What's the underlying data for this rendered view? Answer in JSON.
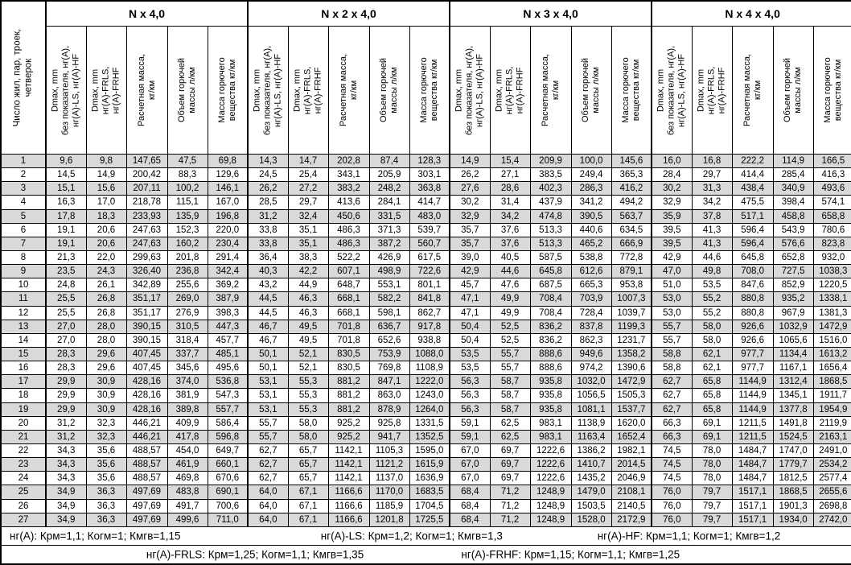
{
  "table": {
    "corner_header": "Число жил, пар, троек,\nчетверок",
    "groups": [
      {
        "title": "N x 4,0"
      },
      {
        "title": "N x 2 x 4,0"
      },
      {
        "title": "N x 3 x 4,0"
      },
      {
        "title": "N x 4 x 4,0"
      }
    ],
    "sub_headers": [
      "Dmax, mm\nбез показателя, нг(А),\nнг(А)-LS, нг(А)-HF",
      "Dmax, mm\nнг(А)-FRLS,\nнг(А)-FRHF",
      "Расчетная масса,\nкг/км",
      "Объем горючей\nмассы л/км",
      "Масса горючего\nвещества кг/км"
    ],
    "stripe_color": "#d9d9d9",
    "rows": [
      {
        "n": "1",
        "cells": [
          "9,6",
          "9,8",
          "147,65",
          "47,5",
          "69,8",
          "14,3",
          "14,7",
          "202,8",
          "87,4",
          "128,3",
          "14,9",
          "15,4",
          "209,9",
          "100,0",
          "145,6",
          "16,0",
          "16,8",
          "222,2",
          "114,9",
          "166,5"
        ]
      },
      {
        "n": "2",
        "cells": [
          "14,5",
          "14,9",
          "200,42",
          "88,3",
          "129,6",
          "24,5",
          "25,4",
          "343,1",
          "205,9",
          "303,1",
          "26,2",
          "27,1",
          "383,5",
          "249,4",
          "365,3",
          "28,4",
          "29,7",
          "414,4",
          "285,4",
          "416,3"
        ]
      },
      {
        "n": "3",
        "cells": [
          "15,1",
          "15,6",
          "207,11",
          "100,2",
          "146,1",
          "26,2",
          "27,2",
          "383,2",
          "248,2",
          "363,8",
          "27,6",
          "28,6",
          "402,3",
          "286,3",
          "416,2",
          "30,2",
          "31,3",
          "438,4",
          "340,9",
          "493,6"
        ]
      },
      {
        "n": "4",
        "cells": [
          "16,3",
          "17,0",
          "218,78",
          "115,1",
          "167,0",
          "28,5",
          "29,7",
          "413,6",
          "284,1",
          "414,7",
          "30,2",
          "31,4",
          "437,9",
          "341,2",
          "494,2",
          "32,9",
          "34,2",
          "475,5",
          "398,4",
          "574,1"
        ]
      },
      {
        "n": "5",
        "cells": [
          "17,8",
          "18,3",
          "233,93",
          "135,9",
          "196,8",
          "31,2",
          "32,4",
          "450,6",
          "331,5",
          "483,0",
          "32,9",
          "34,2",
          "474,8",
          "390,5",
          "563,7",
          "35,9",
          "37,8",
          "517,1",
          "458,8",
          "658,8"
        ]
      },
      {
        "n": "6",
        "cells": [
          "19,1",
          "20,6",
          "247,63",
          "152,3",
          "220,0",
          "33,8",
          "35,1",
          "486,3",
          "371,3",
          "539,7",
          "35,7",
          "37,6",
          "513,3",
          "440,6",
          "634,5",
          "39,5",
          "41,3",
          "596,4",
          "543,9",
          "780,6"
        ]
      },
      {
        "n": "7",
        "cells": [
          "19,1",
          "20,6",
          "247,63",
          "160,2",
          "230,4",
          "33,8",
          "35,1",
          "486,3",
          "387,2",
          "560,7",
          "35,7",
          "37,6",
          "513,3",
          "465,2",
          "666,9",
          "39,5",
          "41,3",
          "596,4",
          "576,6",
          "823,8"
        ]
      },
      {
        "n": "8",
        "cells": [
          "21,3",
          "22,0",
          "299,63",
          "201,8",
          "291,4",
          "36,4",
          "38,3",
          "522,2",
          "426,9",
          "617,5",
          "39,0",
          "40,5",
          "587,5",
          "538,8",
          "772,8",
          "42,9",
          "44,6",
          "645,8",
          "652,8",
          "932,0"
        ]
      },
      {
        "n": "9",
        "cells": [
          "23,5",
          "24,3",
          "326,40",
          "236,8",
          "342,4",
          "40,3",
          "42,2",
          "607,1",
          "498,9",
          "722,6",
          "42,9",
          "44,6",
          "645,8",
          "612,6",
          "879,1",
          "47,0",
          "49,8",
          "708,0",
          "727,5",
          "1038,3"
        ]
      },
      {
        "n": "10",
        "cells": [
          "24,8",
          "26,1",
          "342,89",
          "255,6",
          "369,2",
          "43,2",
          "44,9",
          "648,7",
          "553,1",
          "801,1",
          "45,7",
          "47,6",
          "687,5",
          "665,3",
          "953,8",
          "51,0",
          "53,5",
          "847,6",
          "852,9",
          "1220,5"
        ]
      },
      {
        "n": "11",
        "cells": [
          "25,5",
          "26,8",
          "351,17",
          "269,0",
          "387,9",
          "44,5",
          "46,3",
          "668,1",
          "582,2",
          "841,8",
          "47,1",
          "49,9",
          "708,4",
          "703,9",
          "1007,3",
          "53,0",
          "55,2",
          "880,8",
          "935,2",
          "1338,1"
        ]
      },
      {
        "n": "12",
        "cells": [
          "25,5",
          "26,8",
          "351,17",
          "276,9",
          "398,3",
          "44,5",
          "46,3",
          "668,1",
          "598,1",
          "862,7",
          "47,1",
          "49,9",
          "708,4",
          "728,4",
          "1039,7",
          "53,0",
          "55,2",
          "880,8",
          "967,9",
          "1381,3"
        ]
      },
      {
        "n": "13",
        "cells": [
          "27,0",
          "28,0",
          "390,15",
          "310,5",
          "447,3",
          "46,7",
          "49,5",
          "701,8",
          "636,7",
          "917,8",
          "50,4",
          "52,5",
          "836,2",
          "837,8",
          "1199,3",
          "55,7",
          "58,0",
          "926,6",
          "1032,9",
          "1472,9"
        ]
      },
      {
        "n": "14",
        "cells": [
          "27,0",
          "28,0",
          "390,15",
          "318,4",
          "457,7",
          "46,7",
          "49,5",
          "701,8",
          "652,6",
          "938,8",
          "50,4",
          "52,5",
          "836,2",
          "862,3",
          "1231,7",
          "55,7",
          "58,0",
          "926,6",
          "1065,6",
          "1516,0"
        ]
      },
      {
        "n": "15",
        "cells": [
          "28,3",
          "29,6",
          "407,45",
          "337,7",
          "485,1",
          "50,1",
          "52,1",
          "830,5",
          "753,9",
          "1088,0",
          "53,5",
          "55,7",
          "888,6",
          "949,6",
          "1358,2",
          "58,8",
          "62,1",
          "977,7",
          "1134,4",
          "1613,2"
        ]
      },
      {
        "n": "16",
        "cells": [
          "28,3",
          "29,6",
          "407,45",
          "345,6",
          "495,6",
          "50,1",
          "52,1",
          "830,5",
          "769,8",
          "1108,9",
          "53,5",
          "55,7",
          "888,6",
          "974,2",
          "1390,6",
          "58,8",
          "62,1",
          "977,7",
          "1167,1",
          "1656,4"
        ]
      },
      {
        "n": "17",
        "cells": [
          "29,9",
          "30,9",
          "428,16",
          "374,0",
          "536,8",
          "53,1",
          "55,3",
          "881,2",
          "847,1",
          "1222,0",
          "56,3",
          "58,7",
          "935,8",
          "1032,0",
          "1472,9",
          "62,7",
          "65,8",
          "1144,9",
          "1312,4",
          "1868,5"
        ]
      },
      {
        "n": "18",
        "cells": [
          "29,9",
          "30,9",
          "428,16",
          "381,9",
          "547,3",
          "53,1",
          "55,3",
          "881,2",
          "863,0",
          "1243,0",
          "56,3",
          "58,7",
          "935,8",
          "1056,5",
          "1505,3",
          "62,7",
          "65,8",
          "1144,9",
          "1345,1",
          "1911,7"
        ]
      },
      {
        "n": "19",
        "cells": [
          "29,9",
          "30,9",
          "428,16",
          "389,8",
          "557,7",
          "53,1",
          "55,3",
          "881,2",
          "878,9",
          "1264,0",
          "56,3",
          "58,7",
          "935,8",
          "1081,1",
          "1537,7",
          "62,7",
          "65,8",
          "1144,9",
          "1377,8",
          "1954,9"
        ]
      },
      {
        "n": "20",
        "cells": [
          "31,2",
          "32,3",
          "446,21",
          "409,9",
          "586,4",
          "55,7",
          "58,0",
          "925,2",
          "925,8",
          "1331,5",
          "59,1",
          "62,5",
          "983,1",
          "1138,9",
          "1620,0",
          "66,3",
          "69,1",
          "1211,5",
          "1491,8",
          "2119,9"
        ]
      },
      {
        "n": "21",
        "cells": [
          "31,2",
          "32,3",
          "446,21",
          "417,8",
          "596,8",
          "55,7",
          "58,0",
          "925,2",
          "941,7",
          "1352,5",
          "59,1",
          "62,5",
          "983,1",
          "1163,4",
          "1652,4",
          "66,3",
          "69,1",
          "1211,5",
          "1524,5",
          "2163,1"
        ]
      },
      {
        "n": "22",
        "cells": [
          "34,3",
          "35,6",
          "488,57",
          "454,0",
          "649,7",
          "62,7",
          "65,7",
          "1142,1",
          "1105,3",
          "1595,0",
          "67,0",
          "69,7",
          "1222,6",
          "1386,2",
          "1982,1",
          "74,5",
          "78,0",
          "1484,7",
          "1747,0",
          "2491,0"
        ]
      },
      {
        "n": "23",
        "cells": [
          "34,3",
          "35,6",
          "488,57",
          "461,9",
          "660,1",
          "62,7",
          "65,7",
          "1142,1",
          "1121,2",
          "1615,9",
          "67,0",
          "69,7",
          "1222,6",
          "1410,7",
          "2014,5",
          "74,5",
          "78,0",
          "1484,7",
          "1779,7",
          "2534,2"
        ]
      },
      {
        "n": "24",
        "cells": [
          "34,3",
          "35,6",
          "488,57",
          "469,8",
          "670,6",
          "62,7",
          "65,7",
          "1142,1",
          "1137,0",
          "1636,9",
          "67,0",
          "69,7",
          "1222,6",
          "1435,2",
          "2046,9",
          "74,5",
          "78,0",
          "1484,7",
          "1812,5",
          "2577,4"
        ]
      },
      {
        "n": "25",
        "cells": [
          "34,9",
          "36,3",
          "497,69",
          "483,8",
          "690,1",
          "64,0",
          "67,1",
          "1166,6",
          "1170,0",
          "1683,5",
          "68,4",
          "71,2",
          "1248,9",
          "1479,0",
          "2108,1",
          "76,0",
          "79,7",
          "1517,1",
          "1868,5",
          "2655,6"
        ]
      },
      {
        "n": "26",
        "cells": [
          "34,9",
          "36,3",
          "497,69",
          "491,7",
          "700,6",
          "64,0",
          "67,1",
          "1166,6",
          "1185,9",
          "1704,5",
          "68,4",
          "71,2",
          "1248,9",
          "1503,5",
          "2140,5",
          "76,0",
          "79,7",
          "1517,1",
          "1901,3",
          "2698,8"
        ]
      },
      {
        "n": "27",
        "cells": [
          "34,9",
          "36,3",
          "497,69",
          "499,6",
          "711,0",
          "64,0",
          "67,1",
          "1166,6",
          "1201,8",
          "1725,5",
          "68,4",
          "71,2",
          "1248,9",
          "1528,0",
          "2172,9",
          "76,0",
          "79,7",
          "1517,1",
          "1934,0",
          "2742,0"
        ]
      }
    ]
  },
  "footnotes": {
    "nga": "нг(А): Крм=1,1;  Когм=1;  Кмгв=1,15",
    "nga_ls": "нг(А)-LS: Крм=1,2;  Когм=1;  Кмгв=1,3",
    "nga_hf": "нг(А)-HF: Крм=1,1;  Когм=1;  Кмгв=1,2",
    "nga_frls": "нг(А)-FRLS: Крм=1,25;  Когм=1,1;  Кмгв=1,35",
    "nga_frhf": "нг(А)-FRHF: Крм=1,15;  Когм=1,1;  Кмгв=1,25"
  }
}
